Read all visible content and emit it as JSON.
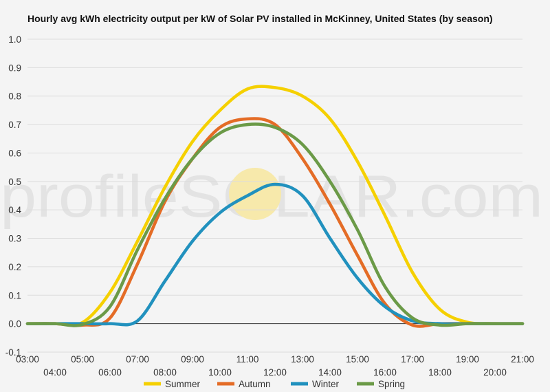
{
  "chart_data": {
    "type": "line",
    "title": "Hourly avg kWh electricity output per kW of Solar PV installed in McKinney, United States (by season)",
    "xlabel": "",
    "ylabel": "",
    "ylim": [
      -0.1,
      1.0
    ],
    "y_ticks": [
      -0.1,
      0.0,
      0.1,
      0.2,
      0.3,
      0.4,
      0.5,
      0.6,
      0.7,
      0.8,
      0.9,
      1.0
    ],
    "y_tick_labels": [
      "-0.1",
      "0.0",
      "0.1",
      "0.2",
      "0.3",
      "0.4",
      "0.5",
      "0.6",
      "0.7",
      "0.8",
      "0.9",
      "1.0"
    ],
    "x_ticks": [
      3,
      4,
      5,
      6,
      7,
      8,
      9,
      10,
      11,
      12,
      13,
      14,
      15,
      16,
      17,
      18,
      19,
      20,
      21
    ],
    "x_tick_labels": [
      "03:00",
      "04:00",
      "05:00",
      "06:00",
      "07:00",
      "08:00",
      "09:00",
      "10:00",
      "11:00",
      "12:00",
      "13:00",
      "14:00",
      "15:00",
      "16:00",
      "17:00",
      "18:00",
      "19:00",
      "20:00",
      "21:00"
    ],
    "grid": true,
    "legend_position": "bottom",
    "watermark": "profileSOLAR.com",
    "x": [
      3,
      4,
      5,
      6,
      7,
      8,
      9,
      10,
      11,
      12,
      13,
      14,
      15,
      16,
      17,
      18,
      19,
      20,
      21
    ],
    "series": [
      {
        "name": "Summer",
        "color": "#f5d000",
        "values": [
          0.0,
          0.0,
          0.004,
          0.11,
          0.29,
          0.48,
          0.64,
          0.75,
          0.825,
          0.83,
          0.8,
          0.72,
          0.57,
          0.38,
          0.18,
          0.05,
          0.005,
          0.0,
          0.0
        ]
      },
      {
        "name": "Autumn",
        "color": "#e46c26",
        "values": [
          0.0,
          0.0,
          -0.005,
          0.02,
          0.21,
          0.43,
          0.58,
          0.69,
          0.72,
          0.7,
          0.58,
          0.42,
          0.24,
          0.07,
          -0.005,
          0.0,
          0.0,
          0.0,
          0.0
        ]
      },
      {
        "name": "Winter",
        "color": "#2191be",
        "values": [
          0.0,
          0.0,
          0.0,
          0.0,
          0.01,
          0.15,
          0.29,
          0.39,
          0.45,
          0.49,
          0.45,
          0.3,
          0.16,
          0.06,
          0.01,
          0.0,
          0.0,
          0.0,
          0.0
        ]
      },
      {
        "name": "Spring",
        "color": "#6b9a47",
        "values": [
          0.0,
          0.0,
          -0.003,
          0.06,
          0.26,
          0.44,
          0.58,
          0.67,
          0.7,
          0.69,
          0.63,
          0.5,
          0.33,
          0.13,
          0.02,
          -0.005,
          0.0,
          0.0,
          0.0
        ]
      }
    ]
  }
}
